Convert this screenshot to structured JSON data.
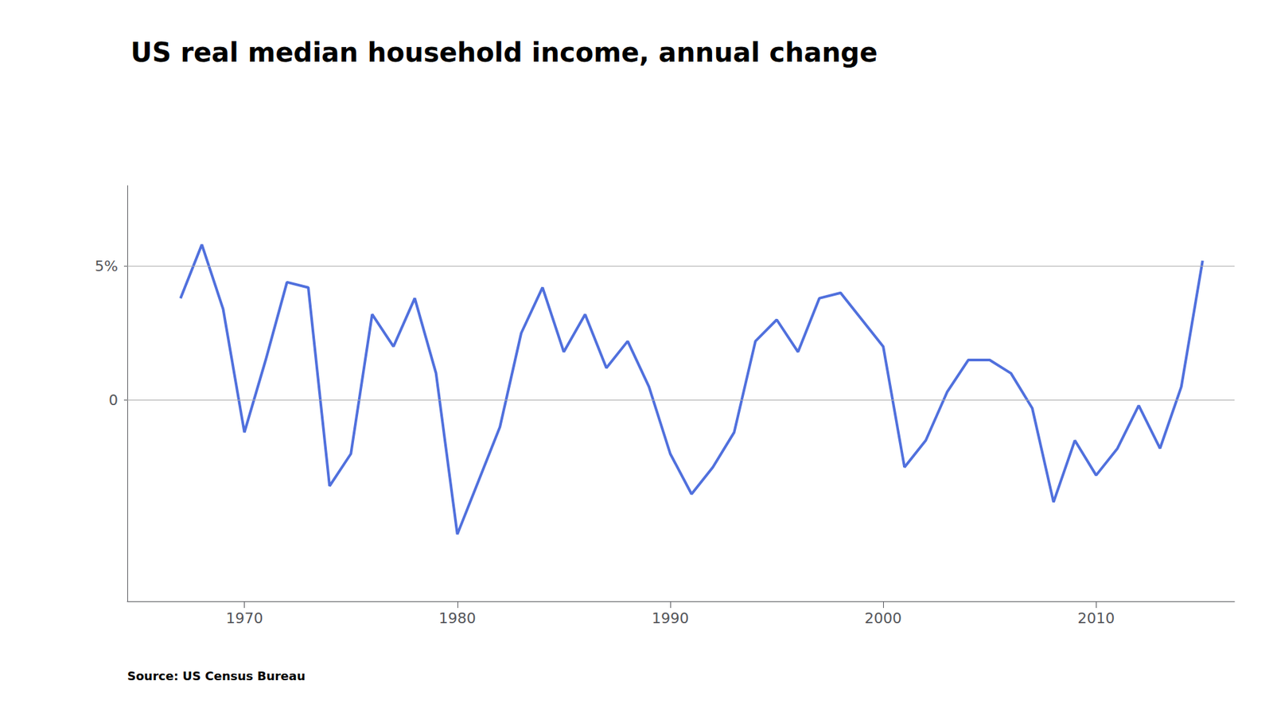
{
  "chart_data": {
    "type": "line",
    "title": "US real median household income, annual change",
    "source": "Source: US Census Bureau",
    "x": [
      1967,
      1968,
      1969,
      1970,
      1971,
      1972,
      1973,
      1974,
      1975,
      1976,
      1977,
      1978,
      1979,
      1980,
      1981,
      1982,
      1983,
      1984,
      1985,
      1986,
      1987,
      1988,
      1989,
      1990,
      1991,
      1992,
      1993,
      1994,
      1995,
      1996,
      1997,
      1998,
      1999,
      2000,
      2001,
      2002,
      2003,
      2004,
      2005,
      2006,
      2007,
      2008,
      2009,
      2010,
      2011,
      2012,
      2013,
      2014,
      2015
    ],
    "values": [
      3.8,
      5.8,
      3.4,
      -1.2,
      1.5,
      4.4,
      4.2,
      -3.2,
      -2.0,
      3.2,
      2.0,
      3.8,
      1.0,
      -5.0,
      -3.0,
      -1.0,
      2.5,
      4.2,
      1.8,
      3.2,
      1.2,
      2.2,
      0.5,
      -2.0,
      -3.5,
      -2.5,
      -1.2,
      2.2,
      3.0,
      1.8,
      3.8,
      4.0,
      3.0,
      2.0,
      -2.5,
      -1.5,
      0.3,
      1.5,
      1.5,
      1.0,
      -0.3,
      -3.8,
      -1.5,
      -2.8,
      -1.8,
      -0.2,
      -1.8,
      0.5,
      5.2
    ],
    "xlim": [
      1964.5,
      2016.5
    ],
    "xticks": [
      1970,
      1980,
      1990,
      2000,
      2010
    ],
    "ylim": [
      -7.5,
      8.0
    ],
    "yticks": [
      0,
      {
        "value": 5,
        "label": "5%"
      }
    ],
    "grid": true
  }
}
